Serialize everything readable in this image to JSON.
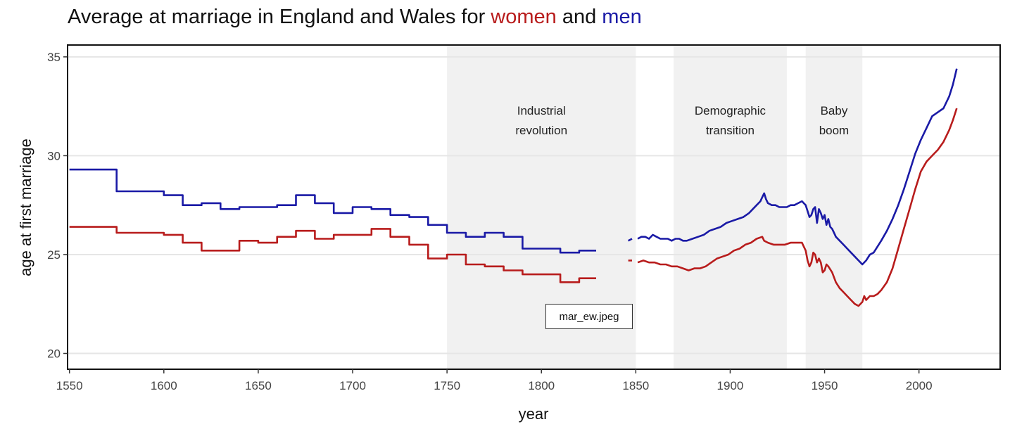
{
  "title": {
    "before": "Average at marriage in England and Wales for ",
    "women": "women",
    "middle": " and ",
    "men": "men"
  },
  "colors": {
    "women": "#b81c1c",
    "men": "#1a1aa6",
    "band": "#f1f1f1",
    "grid": "#e6e6e6"
  },
  "file_tag": "mar_ew.jpeg",
  "chart_data": {
    "type": "line",
    "title": "Average at marriage in England and Wales for women and men",
    "xlabel": "year",
    "ylabel": "age at first marriage",
    "xlim": [
      1549,
      2043
    ],
    "ylim": [
      19.2,
      35.6
    ],
    "xticks": [
      1550,
      1600,
      1650,
      1700,
      1750,
      1800,
      1850,
      1900,
      1950,
      2000
    ],
    "yticks": [
      20,
      25,
      30,
      35
    ],
    "grid": "horizontal",
    "bands": [
      {
        "x0": 1750,
        "x1": 1850,
        "label": [
          "Industrial",
          "revolution"
        ]
      },
      {
        "x0": 1870,
        "x1": 1930,
        "label": [
          "Demographic",
          "transition"
        ]
      },
      {
        "x0": 1940,
        "x1": 1970,
        "label": [
          "Baby",
          "boom"
        ]
      }
    ],
    "series": [
      {
        "name": "men",
        "color": "#1a1aa6",
        "segments": [
          {
            "step": true,
            "x": [
              1550,
              1575,
              1575,
              1600,
              1600,
              1610,
              1610,
              1620,
              1620,
              1630,
              1630,
              1640,
              1640,
              1660,
              1660,
              1670,
              1670,
              1680,
              1680,
              1690,
              1690,
              1700,
              1700,
              1710,
              1710,
              1720,
              1720,
              1730,
              1730,
              1740,
              1740,
              1750,
              1750,
              1760,
              1760,
              1770,
              1770,
              1780,
              1780,
              1790,
              1790,
              1800,
              1800,
              1810,
              1810,
              1820,
              1820,
              1829
            ],
            "y": [
              29.3,
              29.3,
              28.2,
              28.2,
              28.0,
              28.0,
              27.5,
              27.5,
              27.6,
              27.6,
              27.3,
              27.3,
              27.4,
              27.4,
              27.5,
              27.5,
              28.0,
              28.0,
              27.6,
              27.6,
              27.1,
              27.1,
              27.4,
              27.4,
              27.3,
              27.3,
              27.0,
              27.0,
              26.9,
              26.9,
              26.5,
              26.5,
              26.1,
              26.1,
              25.9,
              25.9,
              26.1,
              26.1,
              25.9,
              25.9,
              25.3,
              25.3,
              25.3,
              25.3,
              25.1,
              25.1,
              25.2,
              25.2
            ]
          },
          {
            "step": false,
            "x": [
              1846,
              1848
            ],
            "y": [
              25.7,
              25.8
            ]
          },
          {
            "step": false,
            "x": [
              1851,
              1853,
              1855,
              1857,
              1859,
              1861,
              1863,
              1865,
              1867,
              1869,
              1871,
              1873,
              1875,
              1877,
              1880,
              1883,
              1886,
              1889,
              1892,
              1895,
              1898,
              1901,
              1904,
              1907,
              1910,
              1912,
              1914,
              1916,
              1917,
              1918,
              1919,
              1920,
              1922,
              1924,
              1926,
              1928,
              1930,
              1932,
              1934,
              1936,
              1938,
              1940,
              1941,
              1942,
              1943,
              1944,
              1945,
              1946,
              1947,
              1948,
              1949,
              1950,
              1951,
              1952,
              1953,
              1954,
              1955,
              1956,
              1957,
              1958,
              1960,
              1962,
              1964,
              1966,
              1968,
              1970,
              1972,
              1974,
              1976,
              1978,
              1980,
              1983,
              1986,
              1989,
              1992,
              1995,
              1998,
              2001,
              2004,
              2007,
              2010,
              2013,
              2016,
              2018,
              2020
            ],
            "y": [
              25.8,
              25.9,
              25.9,
              25.8,
              26.0,
              25.9,
              25.8,
              25.8,
              25.8,
              25.7,
              25.8,
              25.8,
              25.7,
              25.7,
              25.8,
              25.9,
              26.0,
              26.2,
              26.3,
              26.4,
              26.6,
              26.7,
              26.8,
              26.9,
              27.1,
              27.3,
              27.5,
              27.7,
              27.9,
              28.1,
              27.8,
              27.6,
              27.5,
              27.5,
              27.4,
              27.4,
              27.4,
              27.5,
              27.5,
              27.6,
              27.7,
              27.5,
              27.2,
              26.9,
              27.0,
              27.3,
              27.4,
              26.6,
              27.3,
              27.1,
              26.8,
              27.0,
              26.5,
              26.8,
              26.4,
              26.3,
              26.1,
              25.9,
              25.8,
              25.7,
              25.5,
              25.3,
              25.1,
              24.9,
              24.7,
              24.5,
              24.7,
              25.0,
              25.1,
              25.4,
              25.7,
              26.2,
              26.8,
              27.5,
              28.3,
              29.2,
              30.1,
              30.8,
              31.4,
              32.0,
              32.2,
              32.4,
              33.0,
              33.6,
              34.4
            ]
          }
        ]
      },
      {
        "name": "women",
        "color": "#b81c1c",
        "segments": [
          {
            "step": true,
            "x": [
              1550,
              1575,
              1575,
              1600,
              1600,
              1610,
              1610,
              1620,
              1620,
              1640,
              1640,
              1650,
              1650,
              1660,
              1660,
              1670,
              1670,
              1680,
              1680,
              1690,
              1690,
              1710,
              1710,
              1720,
              1720,
              1730,
              1730,
              1740,
              1740,
              1750,
              1750,
              1760,
              1760,
              1770,
              1770,
              1780,
              1780,
              1790,
              1790,
              1810,
              1810,
              1820,
              1820,
              1829
            ],
            "y": [
              26.4,
              26.4,
              26.1,
              26.1,
              26.0,
              26.0,
              25.6,
              25.6,
              25.2,
              25.2,
              25.7,
              25.7,
              25.6,
              25.6,
              25.9,
              25.9,
              26.2,
              26.2,
              25.8,
              25.8,
              26.0,
              26.0,
              26.3,
              26.3,
              25.9,
              25.9,
              25.5,
              25.5,
              24.8,
              24.8,
              25.0,
              25.0,
              24.5,
              24.5,
              24.4,
              24.4,
              24.2,
              24.2,
              24.0,
              24.0,
              23.6,
              23.6,
              23.8,
              23.8
            ]
          },
          {
            "step": false,
            "x": [
              1846,
              1848
            ],
            "y": [
              24.7,
              24.7
            ]
          },
          {
            "step": false,
            "x": [
              1851,
              1854,
              1857,
              1860,
              1863,
              1866,
              1869,
              1872,
              1875,
              1878,
              1881,
              1884,
              1887,
              1890,
              1893,
              1896,
              1899,
              1902,
              1905,
              1908,
              1911,
              1914,
              1917,
              1918,
              1920,
              1923,
              1926,
              1929,
              1932,
              1935,
              1938,
              1940,
              1941,
              1942,
              1943,
              1944,
              1945,
              1946,
              1947,
              1948,
              1949,
              1950,
              1951,
              1952,
              1954,
              1956,
              1958,
              1960,
              1962,
              1964,
              1966,
              1968,
              1970,
              1971,
              1972,
              1974,
              1976,
              1978,
              1980,
              1983,
              1986,
              1989,
              1992,
              1995,
              1998,
              2001,
              2004,
              2007,
              2010,
              2013,
              2016,
              2018,
              2020
            ],
            "y": [
              24.6,
              24.7,
              24.6,
              24.6,
              24.5,
              24.5,
              24.4,
              24.4,
              24.3,
              24.2,
              24.3,
              24.3,
              24.4,
              24.6,
              24.8,
              24.9,
              25.0,
              25.2,
              25.3,
              25.5,
              25.6,
              25.8,
              25.9,
              25.7,
              25.6,
              25.5,
              25.5,
              25.5,
              25.6,
              25.6,
              25.6,
              25.2,
              24.7,
              24.4,
              24.6,
              25.1,
              25.0,
              24.6,
              24.8,
              24.6,
              24.1,
              24.2,
              24.5,
              24.4,
              24.1,
              23.6,
              23.3,
              23.1,
              22.9,
              22.7,
              22.5,
              22.4,
              22.6,
              22.9,
              22.7,
              22.9,
              22.9,
              23.0,
              23.2,
              23.6,
              24.3,
              25.3,
              26.3,
              27.3,
              28.3,
              29.2,
              29.7,
              30.0,
              30.3,
              30.7,
              31.3,
              31.8,
              32.4
            ]
          }
        ]
      }
    ]
  }
}
